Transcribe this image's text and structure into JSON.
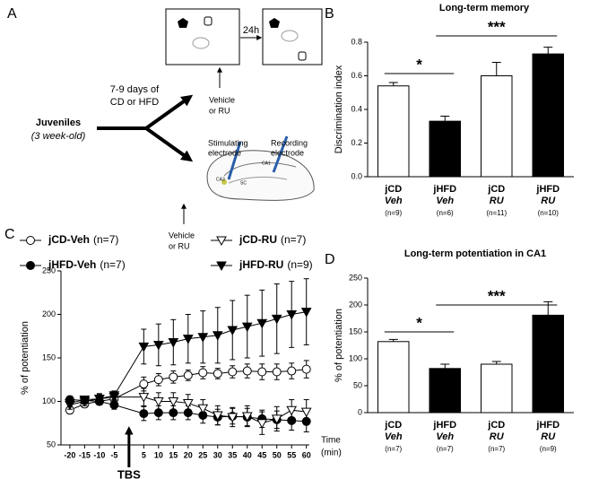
{
  "diagram": {
    "panel": "A",
    "cohort": {
      "label": "Juveniles",
      "age": "(3 week-old)"
    },
    "diet": [
      "7-9 days of",
      "CD or HFD"
    ],
    "delay": "24h",
    "treatment_behavior": [
      "Vehicle",
      "or RU"
    ],
    "treatment_ephys": [
      "Vehicle",
      "or RU"
    ],
    "stimulating_electrode": [
      "Stimulating",
      "electrode"
    ],
    "recording_electrode": [
      "Recording",
      "electrode"
    ],
    "regions": [
      "CA1",
      "CA3",
      "SC"
    ]
  },
  "chart_data": [
    {
      "type": "bar",
      "panel": "B",
      "title": "Long-term memory",
      "y_label": "Discrimination index",
      "categories": [
        "jCD",
        "jHFD",
        "jCD",
        "jHFD"
      ],
      "subcategories": [
        "Veh",
        "Veh",
        "RU",
        "RU"
      ],
      "n_labels": [
        "(n=9)",
        "(n=6)",
        "(n=11)",
        "(n=10)"
      ],
      "values": [
        0.54,
        0.33,
        0.6,
        0.73
      ],
      "errors": [
        0.02,
        0.03,
        0.08,
        0.04
      ],
      "colors": [
        "#ffffff",
        "#000000",
        "#ffffff",
        "#000000"
      ],
      "ylim": [
        0,
        0.8
      ],
      "yticks": [
        {
          "value": 0,
          "label": "0.0"
        },
        0.2,
        0.4,
        0.6,
        0.8
      ],
      "annotations": [
        {
          "text": "*"
        },
        {
          "text": "***"
        }
      ]
    },
    {
      "type": "line",
      "panel": "C",
      "y_label": "% of potentiation",
      "x_label": [
        "Time",
        "(min)"
      ],
      "marker_label": "TBS",
      "x": [
        -20,
        -15,
        -10,
        -5,
        5,
        10,
        15,
        20,
        25,
        30,
        35,
        40,
        45,
        50,
        55,
        60
      ],
      "xlim": [
        -23,
        61
      ],
      "xticks": [
        -20,
        -15,
        -10,
        -5,
        5,
        10,
        15,
        20,
        25,
        30,
        35,
        40,
        45,
        50,
        55,
        60
      ],
      "ylim": [
        50,
        250
      ],
      "yticks": [
        50,
        100,
        150,
        200,
        250
      ],
      "series": [
        {
          "name": "jCD-Veh",
          "n_label": "(n=7)",
          "color": "#000000",
          "marker": "circle",
          "filled": false,
          "values": [
            90,
            97,
            100,
            103,
            120,
            125,
            128,
            130,
            133,
            132,
            134,
            135,
            134,
            134,
            135,
            137
          ],
          "errors": [
            4,
            4,
            4,
            5,
            8,
            7,
            7,
            6,
            7,
            6,
            7,
            8,
            9,
            9,
            9,
            10
          ]
        },
        {
          "name": "jHFD-Veh",
          "n_label": "(n=7)",
          "color": "#000000",
          "marker": "circle",
          "filled": true,
          "values": [
            102,
            101,
            100,
            96,
            86,
            87,
            87,
            87,
            84,
            82,
            83,
            82,
            80,
            79,
            78,
            77
          ],
          "errors": [
            4,
            4,
            4,
            5,
            8,
            8,
            8,
            8,
            9,
            9,
            9,
            10,
            10,
            10,
            11,
            12
          ]
        },
        {
          "name": "jCD-RU",
          "n_label": "(n=7)",
          "color": "#000000",
          "marker": "triangle-down",
          "filled": false,
          "values": [
            96,
            100,
            103,
            105,
            105,
            100,
            100,
            98,
            92,
            84,
            82,
            83,
            75,
            80,
            90,
            88
          ],
          "errors": [
            5,
            5,
            6,
            6,
            10,
            10,
            10,
            10,
            10,
            11,
            11,
            12,
            13,
            14,
            12,
            14
          ]
        },
        {
          "name": "jHFD-RU",
          "n_label": "(n=9)",
          "color": "#000000",
          "marker": "triangle-down",
          "filled": true,
          "values": [
            98,
            102,
            103,
            107,
            163,
            165,
            168,
            172,
            174,
            176,
            182,
            186,
            190,
            195,
            200,
            203
          ],
          "errors": [
            4,
            4,
            5,
            5,
            20,
            24,
            26,
            28,
            30,
            32,
            34,
            36,
            38,
            40,
            38,
            38
          ]
        }
      ]
    },
    {
      "type": "bar",
      "panel": "D",
      "title": "Long-term potentiation in CA1",
      "y_label": "% of potentiation",
      "categories": [
        "jCD",
        "jHFD",
        "jCD",
        "jHFD"
      ],
      "subcategories": [
        "Veh",
        "Veh",
        "RU",
        "RU"
      ],
      "n_labels": [
        "(n=7)",
        "(n=7)",
        "(n=7)",
        "(n=9)"
      ],
      "values": [
        132,
        82,
        90,
        181
      ],
      "errors": [
        4,
        8,
        5,
        25
      ],
      "colors": [
        "#ffffff",
        "#000000",
        "#ffffff",
        "#000000"
      ],
      "ylim": [
        0,
        250
      ],
      "yticks": [
        0,
        50,
        100,
        150,
        200,
        250
      ],
      "annotations": [
        {
          "text": "*"
        },
        {
          "text": "***"
        }
      ]
    }
  ]
}
